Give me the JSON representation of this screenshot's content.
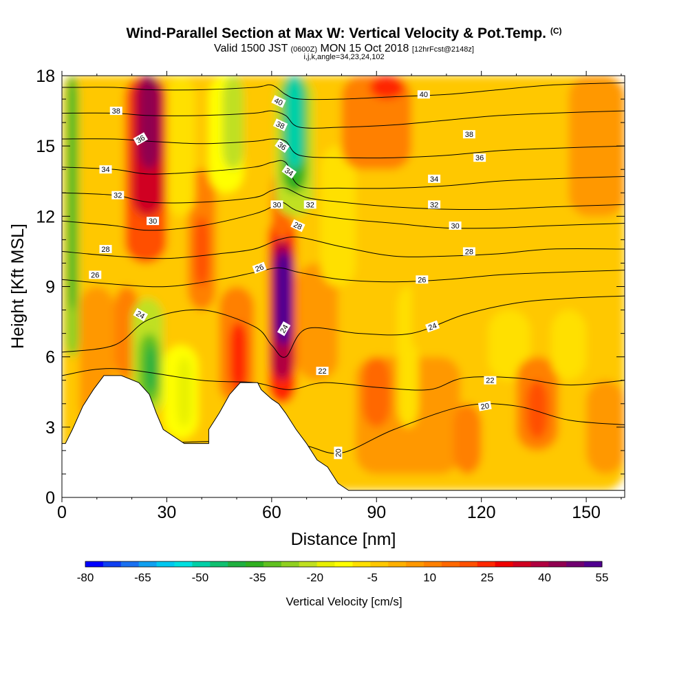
{
  "chart_data": {
    "type": "heatmap",
    "title": "Wind-Parallel Section at Max W: Vertical Velocity & Pot.Temp.",
    "title_mark": "(C)",
    "subtitle": {
      "prefix": "Valid 1500 JST",
      "zulu": "(0600Z)",
      "date": "MON 15 Oct 2018",
      "forecast": "[12hrFcst@2148z]"
    },
    "params": "i,j,k,angle=34,23,24,102",
    "xlabel": "Distance [nm]",
    "ylabel": "Height [Kft MSL]",
    "xlim": [
      0,
      161
    ],
    "ylim": [
      0,
      18
    ],
    "x_ticks": [
      "0",
      "30",
      "60",
      "90",
      "120",
      "150"
    ],
    "y_ticks": [
      "0",
      "3",
      "6",
      "9",
      "12",
      "15",
      "18"
    ],
    "grid": false,
    "colorbar": {
      "label": "Vertical Velocity [cm/s]",
      "tick_labels": [
        "-80",
        "-65",
        "-50",
        "-35",
        "-20",
        "-5",
        "10",
        "25",
        "40",
        "55"
      ],
      "colors": [
        "#0000ff",
        "#1040f0",
        "#1a70f0",
        "#10a0f0",
        "#00c8f0",
        "#00e0e0",
        "#00d0a8",
        "#10c070",
        "#20b040",
        "#30b020",
        "#60c020",
        "#90d020",
        "#c0e020",
        "#e8f000",
        "#ffff00",
        "#ffe000",
        "#ffc800",
        "#ffb000",
        "#ff9800",
        "#ff8000",
        "#ff6800",
        "#ff5000",
        "#ff2800",
        "#f00000",
        "#d00020",
        "#b00040",
        "#900050",
        "#700070",
        "#500090"
      ],
      "range": [
        -80,
        55
      ]
    },
    "terrain": [
      [
        0,
        2.3
      ],
      [
        1,
        2.3
      ],
      [
        3,
        2.9
      ],
      [
        6,
        3.9
      ],
      [
        9,
        4.6
      ],
      [
        12,
        5.2
      ],
      [
        17,
        5.2
      ],
      [
        22,
        4.9
      ],
      [
        25,
        4.4
      ],
      [
        27,
        3.6
      ],
      [
        29,
        2.9
      ],
      [
        32,
        2.6
      ],
      [
        35,
        2.3
      ],
      [
        42,
        2.3
      ],
      [
        42,
        2.9
      ],
      [
        45,
        3.6
      ],
      [
        48,
        4.4
      ],
      [
        51,
        4.9
      ],
      [
        56,
        4.9
      ],
      [
        57,
        4.6
      ],
      [
        60,
        4.2
      ],
      [
        62,
        4.0
      ],
      [
        64,
        3.6
      ],
      [
        67,
        2.9
      ],
      [
        70,
        2.3
      ],
      [
        73,
        1.6
      ],
      [
        76,
        1.3
      ],
      [
        79,
        0.6
      ],
      [
        82,
        0.3
      ],
      [
        161,
        0.3
      ]
    ],
    "velocity_cells": [
      {
        "x": 0,
        "y": 0.3,
        "w": 161,
        "h": 17.7,
        "v": -2
      },
      {
        "x": 0,
        "y": 2.3,
        "w": 5,
        "h": 15.7,
        "v": -3
      },
      {
        "x": 1,
        "y": 6,
        "w": 4,
        "h": 12,
        "v": -28
      },
      {
        "x": 2,
        "y": 8,
        "w": 2,
        "h": 10,
        "v": -38
      },
      {
        "x": 5,
        "y": 3,
        "w": 10,
        "h": 6,
        "v": 4
      },
      {
        "x": 15,
        "y": 5,
        "w": 7,
        "h": 4,
        "v": 9
      },
      {
        "x": 18,
        "y": 10,
        "w": 12,
        "h": 8,
        "v": 20
      },
      {
        "x": 20,
        "y": 12,
        "w": 9,
        "h": 6,
        "v": 32
      },
      {
        "x": 22,
        "y": 14,
        "w": 6,
        "h": 4,
        "v": 44
      },
      {
        "x": 20,
        "y": 3.5,
        "w": 9,
        "h": 5,
        "v": -22
      },
      {
        "x": 22,
        "y": 4,
        "w": 6,
        "h": 3,
        "v": -33
      },
      {
        "x": 24,
        "y": 4.5,
        "w": 3,
        "h": 2,
        "v": -40
      },
      {
        "x": 29,
        "y": 2.5,
        "w": 10,
        "h": 4,
        "v": -12
      },
      {
        "x": 33,
        "y": 3,
        "w": 4,
        "h": 3,
        "v": -18
      },
      {
        "x": 36,
        "y": 8,
        "w": 8,
        "h": 6,
        "v": 12
      },
      {
        "x": 38,
        "y": 9,
        "w": 4,
        "h": 3,
        "v": 22
      },
      {
        "x": 30,
        "y": 12,
        "w": 8,
        "h": 6,
        "v": -6
      },
      {
        "x": 42,
        "y": 13,
        "w": 10,
        "h": 5,
        "v": -14
      },
      {
        "x": 46,
        "y": 14,
        "w": 6,
        "h": 4,
        "v": -22
      },
      {
        "x": 45,
        "y": 4,
        "w": 10,
        "h": 5,
        "v": 13
      },
      {
        "x": 48,
        "y": 4.5,
        "w": 5,
        "h": 3,
        "v": 24
      },
      {
        "x": 52,
        "y": 9,
        "w": 8,
        "h": 9,
        "v": -5
      },
      {
        "x": 59,
        "y": 4,
        "w": 8,
        "h": 8,
        "v": 24
      },
      {
        "x": 60,
        "y": 5,
        "w": 6,
        "h": 6,
        "v": 40
      },
      {
        "x": 61,
        "y": 6.5,
        "w": 5,
        "h": 4,
        "v": 52
      },
      {
        "x": 60,
        "y": 11,
        "w": 6,
        "h": 3,
        "v": 16
      },
      {
        "x": 61,
        "y": 12,
        "w": 11,
        "h": 6,
        "v": -20
      },
      {
        "x": 63,
        "y": 13,
        "w": 7,
        "h": 5,
        "v": -35
      },
      {
        "x": 64,
        "y": 14,
        "w": 5,
        "h": 4,
        "v": -52
      },
      {
        "x": 67,
        "y": 5,
        "w": 12,
        "h": 5,
        "v": 4
      },
      {
        "x": 74,
        "y": 9,
        "w": 10,
        "h": 6,
        "v": -8
      },
      {
        "x": 80,
        "y": 14,
        "w": 20,
        "h": 4,
        "v": 13
      },
      {
        "x": 88,
        "y": 17,
        "w": 10,
        "h": 1,
        "v": 24
      },
      {
        "x": 84,
        "y": 1,
        "w": 30,
        "h": 5,
        "v": 6
      },
      {
        "x": 86,
        "y": 3,
        "w": 8,
        "h": 3,
        "v": 14
      },
      {
        "x": 96,
        "y": 3,
        "w": 6,
        "h": 6,
        "v": -6
      },
      {
        "x": 100,
        "y": 6,
        "w": 14,
        "h": 8,
        "v": -5
      },
      {
        "x": 112,
        "y": 1,
        "w": 8,
        "h": 3,
        "v": 12
      },
      {
        "x": 122,
        "y": 5,
        "w": 12,
        "h": 3,
        "v": -8
      },
      {
        "x": 130,
        "y": 2,
        "w": 12,
        "h": 4,
        "v": 13
      },
      {
        "x": 133,
        "y": 2.5,
        "w": 6,
        "h": 2.5,
        "v": 20
      },
      {
        "x": 140,
        "y": 5,
        "w": 10,
        "h": 3,
        "v": -9
      },
      {
        "x": 145,
        "y": 12,
        "w": 16,
        "h": 6,
        "v": 5
      },
      {
        "x": 150,
        "y": 1,
        "w": 11,
        "h": 4,
        "v": 4
      }
    ],
    "isentropes": [
      {
        "label": "20",
        "x": [
          0,
          20,
          45,
          60,
          70,
          80,
          95,
          115,
          130,
          145,
          161
        ],
        "y": [
          1.5,
          2.2,
          2.4,
          2.4,
          2.2,
          1.9,
          2.9,
          3.9,
          3.9,
          3.3,
          3.1
        ]
      },
      {
        "label": "22",
        "x": [
          0,
          15,
          40,
          55,
          65,
          75,
          90,
          105,
          115,
          130,
          145,
          161
        ],
        "y": [
          5.2,
          5.5,
          5.0,
          4.9,
          4.6,
          4.9,
          4.7,
          4.6,
          5.1,
          5.1,
          4.8,
          5.0
        ]
      },
      {
        "label": "24",
        "x": [
          0,
          15,
          25,
          40,
          55,
          60,
          64,
          70,
          85,
          100,
          115,
          130,
          145,
          161
        ],
        "y": [
          6.2,
          6.5,
          7.6,
          8.0,
          7.3,
          6.5,
          6.0,
          7.2,
          7.0,
          7.0,
          7.8,
          8.3,
          8.5,
          8.6
        ]
      },
      {
        "label": "26",
        "x": [
          0,
          15,
          30,
          45,
          55,
          62,
          68,
          80,
          95,
          110,
          125,
          140,
          161
        ],
        "y": [
          9.3,
          9.1,
          9.0,
          9.3,
          9.6,
          9.8,
          9.6,
          9.3,
          9.2,
          9.3,
          9.5,
          9.6,
          9.7
        ]
      },
      {
        "label": "28",
        "x": [
          0,
          15,
          30,
          45,
          55,
          62,
          68,
          80,
          95,
          110,
          125,
          140,
          161
        ],
        "y": [
          10.5,
          10.3,
          10.2,
          10.4,
          10.6,
          11.0,
          11.1,
          10.7,
          10.3,
          10.3,
          10.4,
          10.6,
          10.6
        ]
      },
      {
        "label": "30",
        "x": [
          0,
          15,
          25,
          40,
          55,
          60,
          63,
          68,
          80,
          95,
          110,
          125,
          140,
          161
        ],
        "y": [
          11.8,
          11.6,
          11.4,
          11.6,
          12.1,
          12.4,
          12.6,
          12.2,
          11.9,
          11.7,
          11.5,
          11.5,
          11.6,
          11.7
        ]
      },
      {
        "label": "32",
        "x": [
          0,
          15,
          25,
          40,
          55,
          60,
          64,
          70,
          80,
          95,
          110,
          125,
          140,
          161
        ],
        "y": [
          13.0,
          12.9,
          12.6,
          12.6,
          12.8,
          13.1,
          13.2,
          12.8,
          12.6,
          12.4,
          12.3,
          12.3,
          12.4,
          12.5
        ]
      },
      {
        "label": "34",
        "x": [
          0,
          15,
          25,
          40,
          55,
          60,
          64,
          68,
          80,
          95,
          110,
          125,
          140,
          161
        ],
        "y": [
          14.1,
          14.0,
          13.8,
          13.9,
          14.1,
          14.3,
          14.3,
          13.3,
          13.2,
          13.2,
          13.3,
          13.5,
          13.6,
          13.7
        ]
      },
      {
        "label": "36",
        "x": [
          0,
          15,
          25,
          40,
          55,
          60,
          64,
          68,
          80,
          95,
          110,
          125,
          140,
          161
        ],
        "y": [
          15.3,
          15.3,
          15.2,
          15.1,
          15.2,
          15.3,
          15.2,
          14.6,
          14.5,
          14.5,
          14.6,
          14.8,
          14.9,
          15.0
        ]
      },
      {
        "label": "38",
        "x": [
          0,
          15,
          25,
          40,
          55,
          60,
          64,
          68,
          80,
          95,
          110,
          125,
          140,
          161
        ],
        "y": [
          16.4,
          16.4,
          16.3,
          16.3,
          16.4,
          16.5,
          16.3,
          15.8,
          15.8,
          15.9,
          16.1,
          16.3,
          16.4,
          16.5
        ]
      },
      {
        "label": "40",
        "x": [
          0,
          15,
          25,
          40,
          55,
          60,
          64,
          68,
          80,
          95,
          110,
          125,
          140,
          161
        ],
        "y": [
          17.5,
          17.5,
          17.4,
          17.4,
          17.5,
          17.6,
          17.2,
          17.0,
          17.0,
          17.1,
          17.2,
          17.4,
          17.6,
          17.7
        ]
      }
    ],
    "contour_labels": [
      {
        "text": "38",
        "x": 15.5,
        "y": 16.5,
        "rot": 0
      },
      {
        "text": "36",
        "x": 22.5,
        "y": 15.3,
        "rot": -30
      },
      {
        "text": "34",
        "x": 12.5,
        "y": 14.0,
        "rot": 0
      },
      {
        "text": "32",
        "x": 16,
        "y": 12.9,
        "rot": 0
      },
      {
        "text": "30",
        "x": 26,
        "y": 11.8,
        "rot": 0
      },
      {
        "text": "28",
        "x": 12.5,
        "y": 10.6,
        "rot": 0
      },
      {
        "text": "26",
        "x": 9.5,
        "y": 9.5,
        "rot": 0
      },
      {
        "text": "24",
        "x": 22.5,
        "y": 7.8,
        "rot": 30
      },
      {
        "text": "40",
        "x": 62,
        "y": 16.9,
        "rot": 25
      },
      {
        "text": "38",
        "x": 62.5,
        "y": 15.9,
        "rot": 25
      },
      {
        "text": "36",
        "x": 63,
        "y": 15.0,
        "rot": 35
      },
      {
        "text": "34",
        "x": 65,
        "y": 13.9,
        "rot": 35
      },
      {
        "text": "32",
        "x": 71,
        "y": 12.5,
        "rot": 0
      },
      {
        "text": "30",
        "x": 61.5,
        "y": 12.5,
        "rot": 0
      },
      {
        "text": "28",
        "x": 67.5,
        "y": 11.6,
        "rot": 25
      },
      {
        "text": "26",
        "x": 56.5,
        "y": 9.8,
        "rot": -20
      },
      {
        "text": "24",
        "x": 63.5,
        "y": 7.2,
        "rot": -60
      },
      {
        "text": "22",
        "x": 74.5,
        "y": 5.4,
        "rot": 0
      },
      {
        "text": "20",
        "x": 79,
        "y": 1.9,
        "rot": -90
      },
      {
        "text": "40",
        "x": 103.5,
        "y": 17.2,
        "rot": 0
      },
      {
        "text": "38",
        "x": 116.5,
        "y": 15.5,
        "rot": 0
      },
      {
        "text": "36",
        "x": 119.5,
        "y": 14.5,
        "rot": 0
      },
      {
        "text": "34",
        "x": 106.5,
        "y": 13.6,
        "rot": 0
      },
      {
        "text": "32",
        "x": 106.5,
        "y": 12.5,
        "rot": 0
      },
      {
        "text": "30",
        "x": 112.5,
        "y": 11.6,
        "rot": 0
      },
      {
        "text": "28",
        "x": 116.5,
        "y": 10.5,
        "rot": 0
      },
      {
        "text": "26",
        "x": 103,
        "y": 9.3,
        "rot": 0
      },
      {
        "text": "24",
        "x": 106,
        "y": 7.3,
        "rot": -20
      },
      {
        "text": "22",
        "x": 122.5,
        "y": 5.0,
        "rot": 0
      },
      {
        "text": "20",
        "x": 121,
        "y": 3.9,
        "rot": -10
      }
    ]
  }
}
